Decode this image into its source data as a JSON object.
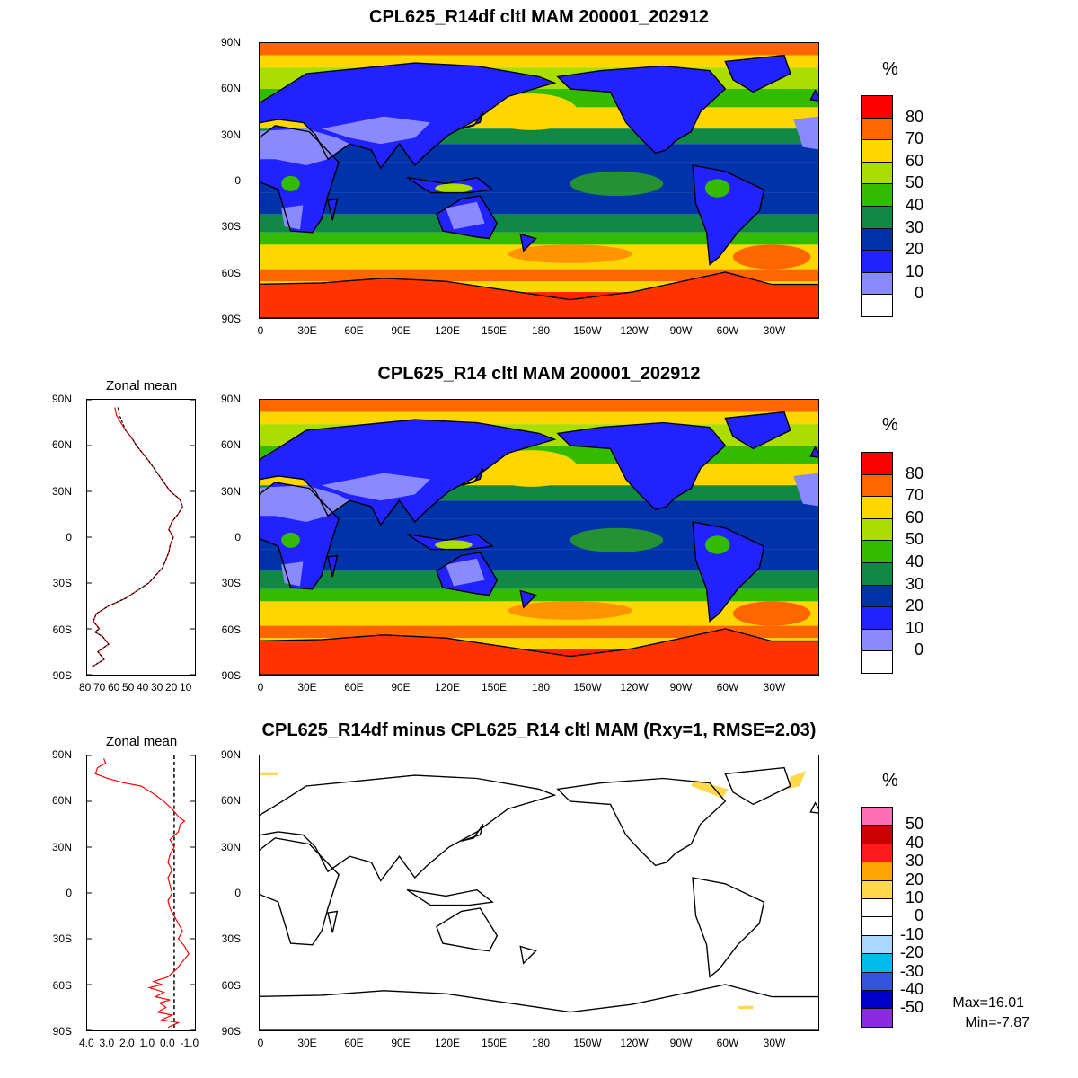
{
  "panels": [
    {
      "title": "CPL625_R14df cltl MAM 200001_202912",
      "unit": "%",
      "colorbar": {
        "colors": [
          "#ff0000",
          "#ff6600",
          "#ffd700",
          "#aadd00",
          "#33bb00",
          "#118844",
          "#0033aa",
          "#2222ff",
          "#8a8aff",
          "#ffffff"
        ],
        "labels": [
          "80",
          "70",
          "60",
          "50",
          "40",
          "30",
          "20",
          "10",
          "0"
        ]
      }
    },
    {
      "title": "CPL625_R14 cltl MAM 200001_202912",
      "unit": "%",
      "colorbar": {
        "colors": [
          "#ff0000",
          "#ff6600",
          "#ffd700",
          "#aadd00",
          "#33bb00",
          "#118844",
          "#0033aa",
          "#2222ff",
          "#8a8aff",
          "#ffffff"
        ],
        "labels": [
          "80",
          "70",
          "60",
          "50",
          "40",
          "30",
          "20",
          "10",
          "0"
        ]
      }
    },
    {
      "title": "CPL625_R14df minus CPL625_R14 cltl MAM (Rxy=1, RMSE=2.03)",
      "unit": "%",
      "colorbar": {
        "colors": [
          "#ff6fb8",
          "#cc0000",
          "#ff1a1a",
          "#ffa500",
          "#ffd84d",
          "#ffffff",
          "#ffffff",
          "#a8d8ff",
          "#00bbee",
          "#3355dd",
          "#0000cc",
          "#8a2be2"
        ],
        "labels": [
          "50",
          "40",
          "30",
          "20",
          "10",
          "0",
          "-10",
          "-20",
          "-30",
          "-40",
          "-50"
        ]
      },
      "stats": {
        "max": "Max=16.01",
        "min": "Min=-7.87"
      }
    }
  ],
  "lat_ticks": [
    "90N",
    "60N",
    "30N",
    "0",
    "30S",
    "60S",
    "90S"
  ],
  "lon_ticks": [
    "0",
    "30E",
    "60E",
    "90E",
    "120E",
    "150E",
    "180",
    "150W",
    "120W",
    "90W",
    "60W",
    "30W"
  ],
  "zonal_means": [
    {
      "title": "Zonal mean",
      "x_ticks": [
        "80",
        "70",
        "60",
        "50",
        "40",
        "30",
        "20",
        "10"
      ],
      "xlim": [
        80,
        10
      ],
      "series": [
        {
          "color": "#ff0000",
          "lat": [
            85,
            80,
            75,
            70,
            65,
            60,
            50,
            40,
            30,
            25,
            20,
            15,
            10,
            5,
            0,
            -5,
            -10,
            -20,
            -30,
            -40,
            -45,
            -50,
            -55,
            -60,
            -62,
            -65,
            -70,
            -75,
            -80,
            -85
          ],
          "values": [
            62,
            61,
            58,
            55,
            51,
            48,
            40,
            33,
            26,
            20,
            18,
            21,
            25,
            27,
            24,
            26,
            27,
            31,
            40,
            55,
            66,
            74,
            76,
            72,
            75,
            70,
            66,
            73,
            69,
            77
          ]
        },
        {
          "color": "#000000",
          "lat": [
            85,
            80,
            75,
            70,
            65,
            60,
            50,
            40,
            30,
            25,
            20,
            15,
            10,
            5,
            0,
            -5,
            -10,
            -20,
            -30,
            -40,
            -45,
            -50,
            -55,
            -60,
            -62,
            -65,
            -70,
            -75,
            -80,
            -85
          ],
          "values": [
            60,
            59,
            57,
            55,
            51,
            48,
            40,
            33,
            26,
            20,
            18,
            21,
            25,
            27,
            24,
            26,
            27,
            31,
            40,
            55,
            66,
            74,
            76,
            72,
            75,
            70,
            66,
            73,
            69,
            77
          ]
        }
      ]
    },
    {
      "title": "Zonal mean",
      "x_ticks": [
        "4.0",
        "3.0",
        "2.0",
        "1.0",
        "0.0",
        "-1.0"
      ],
      "xlim": [
        4.2,
        -1.0
      ],
      "zero_line": 0,
      "series": [
        {
          "color": "#ff0000",
          "lat": [
            88,
            85,
            82,
            78,
            75,
            72,
            70,
            65,
            60,
            55,
            50,
            47,
            45,
            40,
            35,
            30,
            25,
            20,
            15,
            10,
            5,
            0,
            -5,
            -10,
            -15,
            -20,
            -25,
            -30,
            -35,
            -40,
            -45,
            -50,
            -55,
            -58,
            -60,
            -62,
            -65,
            -68,
            -70,
            -72,
            -75,
            -78,
            -80,
            -83,
            -85,
            -88
          ],
          "values": [
            3.4,
            3.3,
            3.7,
            3.8,
            3.2,
            2.4,
            1.6,
            1.0,
            0.5,
            0.1,
            -0.2,
            -0.5,
            -0.3,
            -0.2,
            0.2,
            0.0,
            0.2,
            0.3,
            0.1,
            0.3,
            0.2,
            0.1,
            0.3,
            0.2,
            0.0,
            -0.2,
            -0.4,
            -0.2,
            -0.5,
            -0.7,
            -0.4,
            -0.1,
            0.3,
            1.0,
            0.6,
            1.2,
            0.5,
            0.9,
            0.2,
            0.7,
            0.4,
            0.8,
            0.1,
            0.6,
            -0.2,
            0.3
          ]
        }
      ]
    }
  ]
}
